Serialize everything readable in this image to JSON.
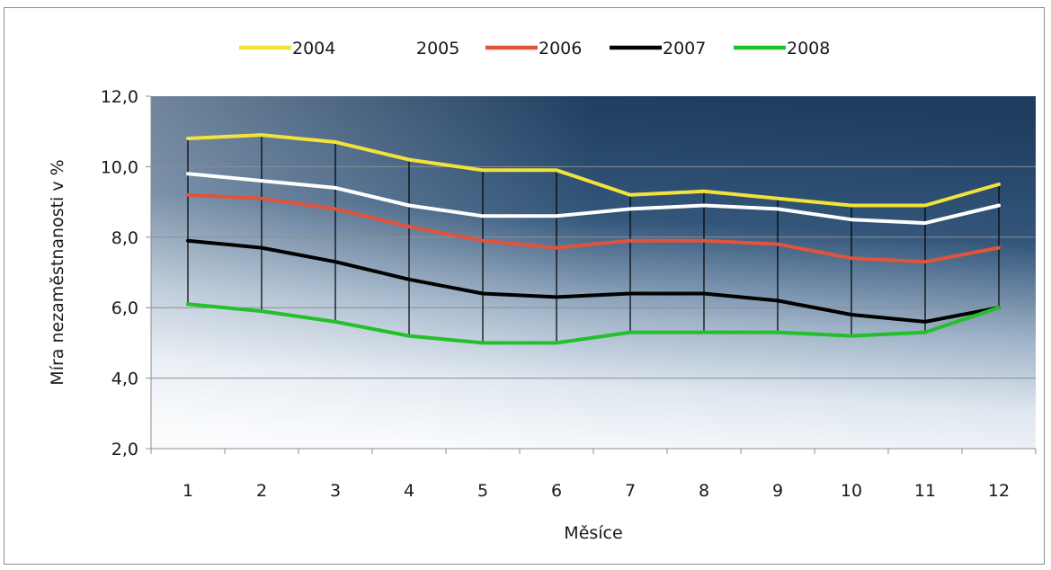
{
  "chart_data": {
    "type": "line",
    "xlabel": "Měsíce",
    "ylabel": "Míra nezaměstnanosti v %",
    "ylim": [
      2.0,
      12.0
    ],
    "yticks": [
      "2,0",
      "4,0",
      "6,0",
      "8,0",
      "10,0",
      "12,0"
    ],
    "categories": [
      "1",
      "2",
      "3",
      "4",
      "5",
      "6",
      "7",
      "8",
      "9",
      "10",
      "11",
      "12"
    ],
    "grid": true,
    "legend_position": "top",
    "high_low_lines": true,
    "series": [
      {
        "name": "2004",
        "color": "#f2e23a",
        "values": [
          10.8,
          10.9,
          10.7,
          10.2,
          9.9,
          9.9,
          9.2,
          9.3,
          9.1,
          8.9,
          8.9,
          9.5
        ]
      },
      {
        "name": "2005",
        "color": "#ffffff",
        "values": [
          9.8,
          9.6,
          9.4,
          8.9,
          8.6,
          8.6,
          8.8,
          8.9,
          8.8,
          8.5,
          8.4,
          8.9
        ]
      },
      {
        "name": "2006",
        "color": "#e0533c",
        "values": [
          9.2,
          9.1,
          8.8,
          8.3,
          7.9,
          7.7,
          7.9,
          7.9,
          7.8,
          7.4,
          7.3,
          7.7
        ]
      },
      {
        "name": "2007",
        "color": "#000000",
        "values": [
          7.9,
          7.7,
          7.3,
          6.8,
          6.4,
          6.3,
          6.4,
          6.4,
          6.2,
          5.8,
          5.6,
          6.0
        ]
      },
      {
        "name": "2008",
        "color": "#22c02a",
        "values": [
          6.1,
          5.9,
          5.6,
          5.2,
          5.0,
          5.0,
          5.3,
          5.3,
          5.3,
          5.2,
          5.3,
          6.0
        ]
      }
    ]
  }
}
